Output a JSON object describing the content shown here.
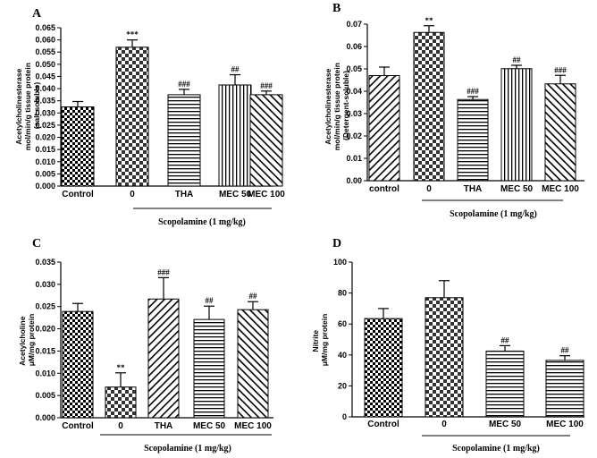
{
  "chart_data": [
    {
      "panel": "A",
      "type": "bar",
      "categories": [
        "Control",
        "0",
        "THA",
        "MEC 50",
        "MEC 100"
      ],
      "values": [
        0.0325,
        0.057,
        0.0375,
        0.0415,
        0.0375
      ],
      "errors": [
        0.0022,
        0.003,
        0.0022,
        0.0042,
        0.0015
      ],
      "annotations": [
        "",
        "***",
        "###",
        "##",
        "###"
      ],
      "ylabel_lines": [
        "Acetylcholinesterase",
        "mol/min/g tissue protein",
        "(salt soluble)"
      ],
      "ylim": [
        0,
        0.065
      ],
      "yticks": [
        "0.000",
        "0.005",
        "0.010",
        "0.015",
        "0.020",
        "0.025",
        "0.030",
        "0.035",
        "0.040",
        "0.045",
        "0.050",
        "0.055",
        "0.060",
        "0.065"
      ],
      "group_label": "Scopolamine (1 mg/kg)"
    },
    {
      "panel": "B",
      "type": "bar",
      "categories": [
        "control",
        "0",
        "THA",
        "MEC 50",
        "MEC 100"
      ],
      "values": [
        0.047,
        0.0663,
        0.0363,
        0.0501,
        0.0433
      ],
      "errors": [
        0.0038,
        0.003,
        0.0013,
        0.0015,
        0.0038
      ],
      "annotations": [
        "",
        "**",
        "###",
        "##",
        "###"
      ],
      "ylabel_lines": [
        "Acetylcholinesterase",
        "mol/min/g tissue protein",
        "(Detergent-soluble)"
      ],
      "ylim": [
        0,
        0.07
      ],
      "yticks": [
        "0.00",
        "0.01",
        "0.02",
        "0.03",
        "0.04",
        "0.05",
        "0.06",
        "0.07"
      ],
      "group_label": "Scopolamine (1 mg/kg)"
    },
    {
      "panel": "C",
      "type": "bar",
      "categories": [
        "Control",
        "0",
        "THA",
        "MEC 50",
        "MEC 100"
      ],
      "values": [
        0.0239,
        0.0069,
        0.0267,
        0.0221,
        0.0243
      ],
      "errors": [
        0.0018,
        0.0032,
        0.0048,
        0.003,
        0.0018
      ],
      "annotations": [
        "",
        "**",
        "###",
        "##",
        "##"
      ],
      "ylabel_lines": [
        "Acetylcholine",
        "μM/mg protein"
      ],
      "ylim": [
        0,
        0.035
      ],
      "yticks": [
        "0.000",
        "0.005",
        "0.010",
        "0.015",
        "0.020",
        "0.025",
        "0.030",
        "0.035"
      ],
      "group_label": "Scopolamine (1 mg/kg)"
    },
    {
      "panel": "D",
      "type": "bar",
      "categories": [
        "Control",
        "0",
        "MEC 50",
        "MEC 100"
      ],
      "values": [
        63.5,
        77,
        42.5,
        36.5
      ],
      "errors": [
        6.5,
        11,
        3.5,
        3
      ],
      "annotations": [
        "",
        "",
        "##",
        "##"
      ],
      "ylabel_lines": [
        "Nitrite",
        "μM/mg protein"
      ],
      "ylim": [
        0,
        100
      ],
      "yticks": [
        "0",
        "20",
        "40",
        "60",
        "80",
        "100"
      ],
      "group_label": "Scopolamine (1 mg/kg)"
    }
  ]
}
